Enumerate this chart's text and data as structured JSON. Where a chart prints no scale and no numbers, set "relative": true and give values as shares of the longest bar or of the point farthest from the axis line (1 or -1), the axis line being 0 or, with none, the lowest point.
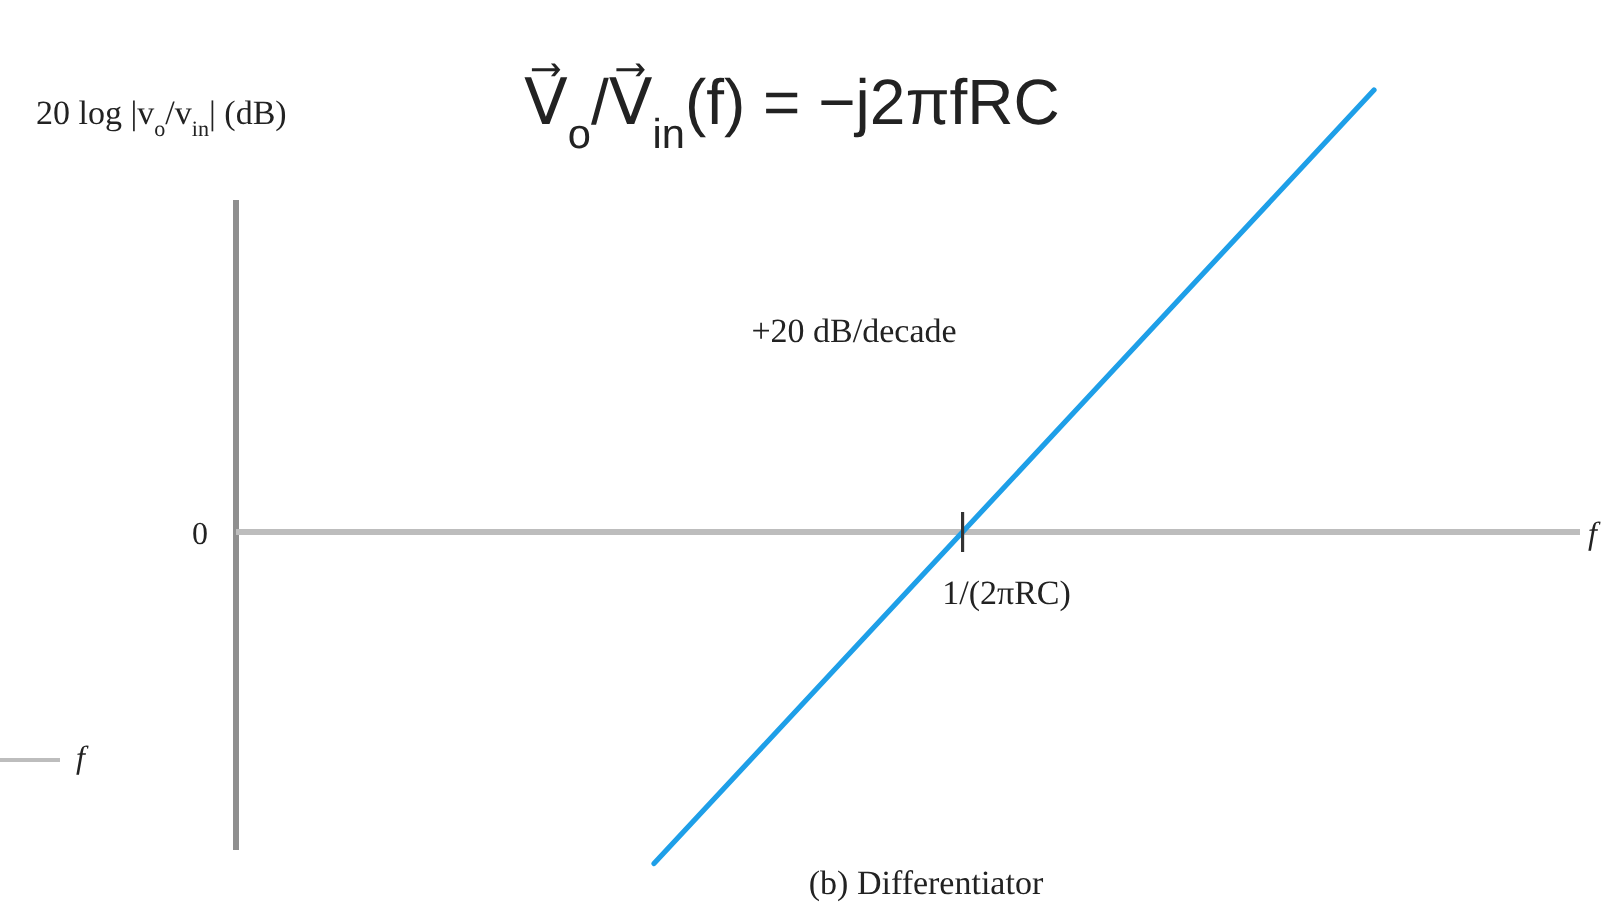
{
  "chart_data": {
    "type": "line",
    "title": "(b) Differentiator",
    "annotations": [
      "20 log |v$_{o}$/v$_{in}$| (dB)",
      "V⃗$_{o}$/V⃗$_{in}$(f) = −j2πfRC",
      "+20 dB/decade",
      "0",
      "1/(2πRC)",
      "f",
      "f"
    ],
    "categories": [
      null,
      null,
      null,
      null,
      null,
      null,
      null,
      null
    ],
    "values": [
      -0.75,
      -0.5,
      -0.25,
      0,
      0.25,
      0.5,
      0.75,
      1
    ],
    "color": "#1e9fe8",
    "relative": true
  }
}
